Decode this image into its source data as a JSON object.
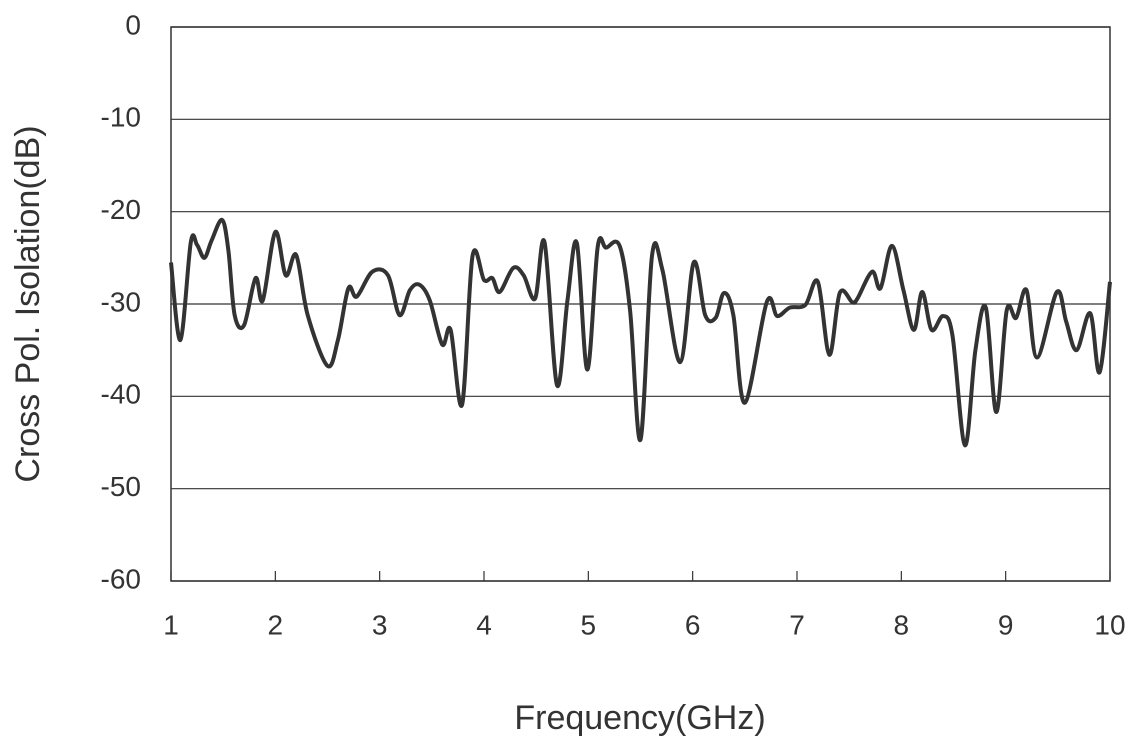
{
  "chart_data": {
    "type": "line",
    "xlabel": "Frequency(GHz)",
    "ylabel": "Cross Pol. Isolation(dB)",
    "xlim": [
      1,
      10
    ],
    "xticks": [
      1,
      2,
      3,
      4,
      5,
      6,
      7,
      8,
      9,
      10
    ],
    "ylim": [
      -60,
      0
    ],
    "yticks": [
      -60,
      -50,
      -40,
      -30,
      -20,
      -10,
      0
    ],
    "grid": true,
    "series": [
      {
        "color": "#333333",
        "x": [
          1.0,
          1.09,
          1.19,
          1.25,
          1.32,
          1.39,
          1.49,
          1.55,
          1.61,
          1.7,
          1.81,
          1.88,
          2.0,
          2.1,
          2.2,
          2.31,
          2.5,
          2.6,
          2.7,
          2.78,
          2.93,
          3.08,
          3.19,
          3.29,
          3.38,
          3.48,
          3.6,
          3.68,
          3.79,
          3.89,
          4.0,
          4.08,
          4.15,
          4.28,
          4.38,
          4.49,
          4.58,
          4.7,
          4.8,
          4.89,
          4.99,
          5.09,
          5.17,
          5.3,
          5.4,
          5.5,
          5.61,
          5.71,
          5.88,
          6.01,
          6.12,
          6.22,
          6.3,
          6.39,
          6.5,
          6.71,
          6.81,
          6.93,
          7.08,
          7.2,
          7.31,
          7.41,
          7.53,
          7.58,
          7.72,
          7.8,
          7.91,
          8.02,
          8.12,
          8.2,
          8.29,
          8.4,
          8.49,
          8.61,
          8.71,
          8.81,
          8.91,
          9.01,
          9.1,
          9.2,
          9.3,
          9.49,
          9.58,
          9.68,
          9.81,
          9.9,
          10.0
        ],
        "values": [
          -25.5,
          -33.9,
          -23.3,
          -23.6,
          -25.0,
          -23.1,
          -20.9,
          -24.2,
          -31.2,
          -32.3,
          -27.2,
          -29.6,
          -22.2,
          -26.9,
          -24.7,
          -31.2,
          -36.7,
          -33.9,
          -28.3,
          -29.2,
          -26.5,
          -26.9,
          -31.2,
          -28.5,
          -27.9,
          -29.6,
          -34.4,
          -32.8,
          -40.9,
          -24.8,
          -27.4,
          -27.2,
          -28.7,
          -26.1,
          -26.9,
          -29.4,
          -23.3,
          -38.8,
          -29.6,
          -23.4,
          -37.1,
          -23.8,
          -23.9,
          -23.7,
          -30.7,
          -44.7,
          -24.8,
          -26.3,
          -36.3,
          -25.5,
          -31.2,
          -31.5,
          -28.8,
          -31.2,
          -40.7,
          -29.8,
          -31.3,
          -30.4,
          -30.1,
          -27.6,
          -35.5,
          -28.8,
          -29.8,
          -29.4,
          -26.5,
          -28.3,
          -23.7,
          -28.5,
          -32.8,
          -28.7,
          -32.8,
          -31.3,
          -33.4,
          -45.3,
          -35.0,
          -30.4,
          -41.7,
          -30.7,
          -31.5,
          -28.5,
          -35.8,
          -28.7,
          -31.9,
          -35.0,
          -31.0,
          -37.4,
          -27.6
        ]
      }
    ]
  }
}
